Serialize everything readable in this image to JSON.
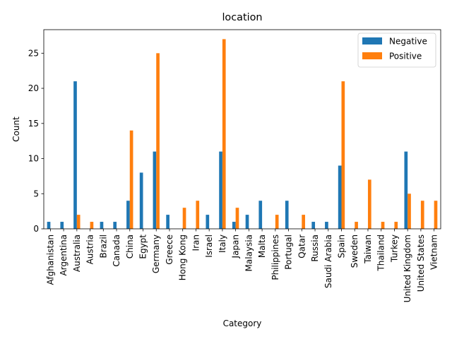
{
  "chart_data": {
    "type": "bar",
    "title": "location",
    "xlabel": "Category",
    "ylabel": "Count",
    "ylim": [
      0,
      28.35
    ],
    "yticks": [
      0,
      5,
      10,
      15,
      20,
      25
    ],
    "legend_position": "top-right",
    "categories": [
      "Afghanistan",
      "Argentina",
      "Australia",
      "Austria",
      "Brazil",
      "Canada",
      "China",
      "Egypt",
      "Germany",
      "Greece",
      "Hong Kong",
      "Iran",
      "Israel",
      "Italy",
      "Japan",
      "Malaysia",
      "Malta",
      "Philippines",
      "Portugal",
      "Qatar",
      "Russia",
      "Saudi Arabia",
      "Spain",
      "Sweden",
      "Taiwan",
      "Thailand",
      "Turkey",
      "United Kingdom",
      "United States",
      "Vietnam"
    ],
    "series": [
      {
        "name": "Negative",
        "color": "#1f77b4",
        "values": [
          1,
          1,
          21,
          0,
          1,
          1,
          4,
          8,
          11,
          2,
          0,
          0,
          2,
          11,
          1,
          2,
          4,
          0,
          4,
          0,
          1,
          1,
          9,
          0,
          0,
          0,
          0,
          11,
          0,
          0
        ]
      },
      {
        "name": "Positive",
        "color": "#ff7f0e",
        "values": [
          0,
          0,
          2,
          1,
          0,
          0,
          14,
          0,
          25,
          0,
          3,
          4,
          0,
          27,
          3,
          0,
          0,
          2,
          0,
          2,
          0,
          0,
          21,
          1,
          7,
          1,
          1,
          5,
          4,
          4
        ]
      }
    ]
  }
}
